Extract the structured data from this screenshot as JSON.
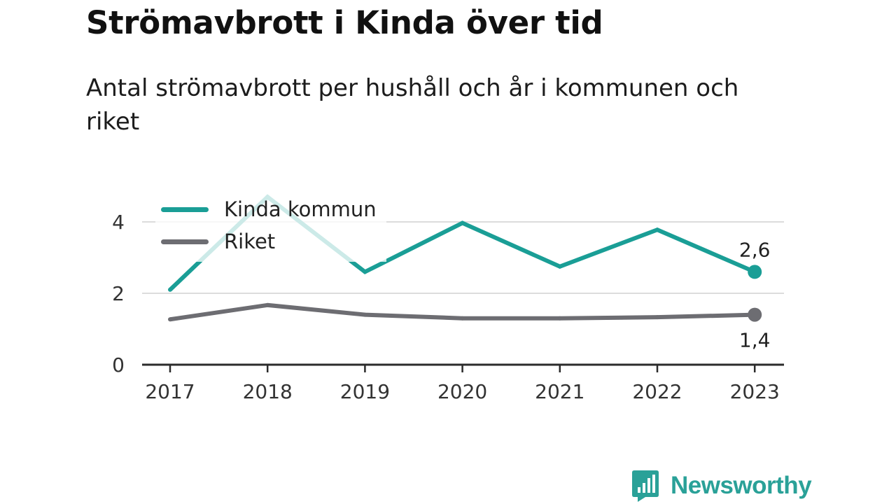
{
  "header": {
    "title": "Strömavbrott i Kinda över tid",
    "subtitle": "Antal strömavbrott per hushåll och år i kommunen och riket"
  },
  "brand": {
    "name": "Newsworthy",
    "icon": "bar-chart-speech-bubble-icon"
  },
  "colors": {
    "kinda": "#1a9e96",
    "riket": "#6d6d72",
    "brand": "#2aa198"
  },
  "chart_data": {
    "type": "line",
    "title": "Strömavbrott i Kinda över tid",
    "subtitle": "Antal strömavbrott per hushåll och år i kommunen och riket",
    "x": [
      "2017",
      "2018",
      "2019",
      "2020",
      "2021",
      "2022",
      "2023"
    ],
    "yticks": [
      "0",
      "2",
      "4"
    ],
    "ylim": [
      0,
      5
    ],
    "grid": true,
    "legend_position": "top-left",
    "series": [
      {
        "name": "Kinda kommun",
        "color": "#1a9e96",
        "values": [
          2.1,
          4.7,
          2.6,
          3.97,
          2.75,
          3.78,
          2.6
        ],
        "end_label": "2,6"
      },
      {
        "name": "Riket",
        "color": "#6d6d72",
        "values": [
          1.27,
          1.67,
          1.4,
          1.3,
          1.3,
          1.33,
          1.4
        ],
        "end_label": "1,4"
      }
    ]
  }
}
